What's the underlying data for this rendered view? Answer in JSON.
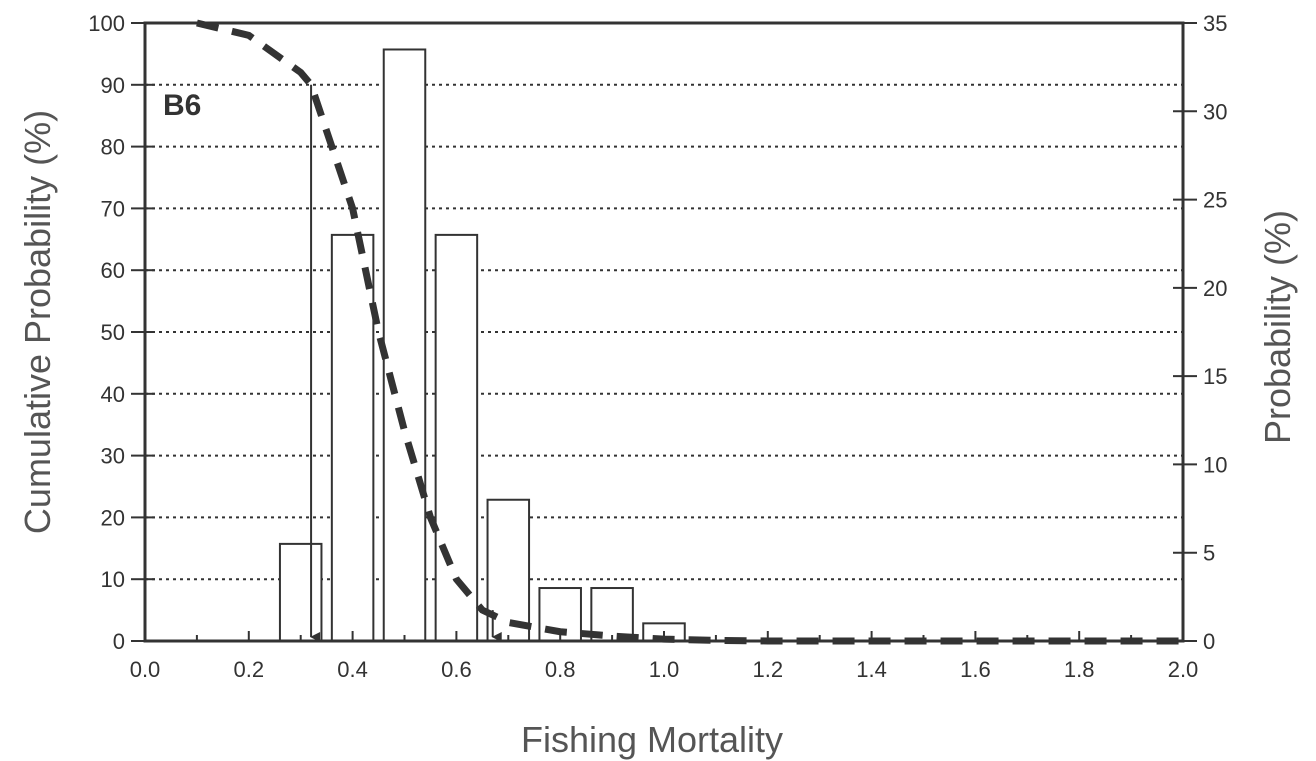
{
  "chart_data": {
    "type": "bar",
    "panel_label": "B6",
    "xlabel": "Fishing Mortality",
    "ylabel_left": "Cumulative Probability (%)",
    "ylabel_right": "Probability (%)",
    "xlim": [
      0.0,
      2.0
    ],
    "ylim_left": [
      0,
      100
    ],
    "ylim_right": [
      0,
      35
    ],
    "x_ticks": [
      "0.0",
      "0.2",
      "0.4",
      "0.6",
      "0.8",
      "1.0",
      "1.2",
      "1.4",
      "1.6",
      "1.8",
      "2.0"
    ],
    "y_ticks_left": [
      "0",
      "10",
      "20",
      "30",
      "40",
      "50",
      "60",
      "70",
      "80",
      "90",
      "100"
    ],
    "y_ticks_right": [
      "0",
      "5",
      "10",
      "15",
      "20",
      "25",
      "30",
      "35"
    ],
    "grid": "horizontal dotted",
    "bars": {
      "axis": "right",
      "bin_width": 0.08,
      "centers": [
        0.3,
        0.4,
        0.5,
        0.6,
        0.7,
        0.8,
        0.9,
        1.0
      ],
      "values": [
        5.5,
        23,
        33.5,
        23,
        8,
        3,
        3,
        1
      ]
    },
    "cumulative_line": {
      "axis": "left",
      "style": "dashed",
      "x": [
        0.1,
        0.2,
        0.3,
        0.32,
        0.4,
        0.45,
        0.5,
        0.55,
        0.6,
        0.65,
        0.7,
        0.8,
        0.9,
        1.0,
        1.1,
        1.2,
        1.4,
        1.6,
        1.8,
        2.0
      ],
      "y": [
        100,
        98,
        92,
        90,
        70,
        50,
        34,
        20,
        10,
        5,
        3,
        1.5,
        0.8,
        0.3,
        0.1,
        0,
        0,
        0,
        0,
        0
      ]
    },
    "arrows": {
      "x": [
        0.32,
        0.67
      ],
      "from_y": [
        90,
        5
      ]
    }
  }
}
